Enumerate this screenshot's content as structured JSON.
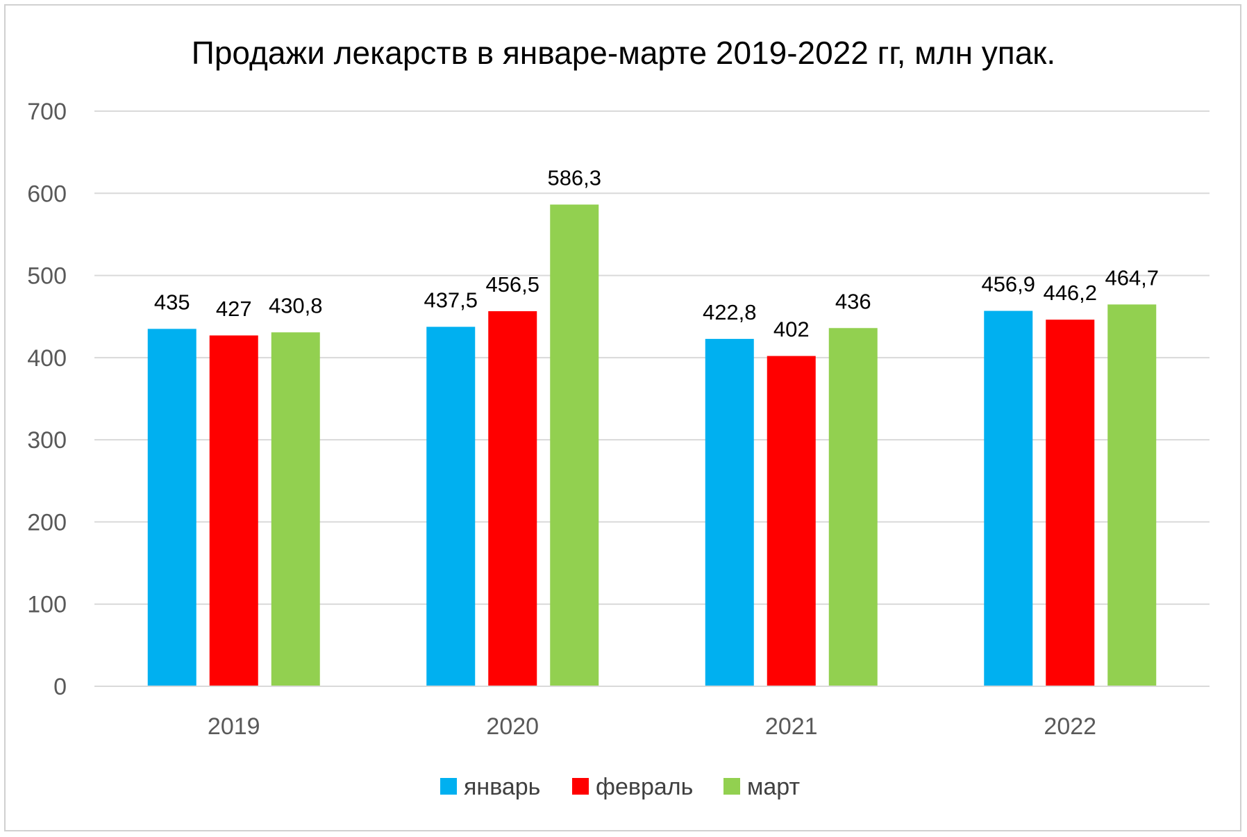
{
  "chart_data": {
    "type": "bar",
    "title": "Продажи лекарств в январе-марте 2019-2022 гг, млн упак.",
    "categories": [
      "2019",
      "2020",
      "2021",
      "2022"
    ],
    "series": [
      {
        "name": "январь",
        "color": "#00b0f0",
        "values": [
          435,
          437.5,
          422.8,
          456.9
        ],
        "labels": [
          "435",
          "437,5",
          "422,8",
          "456,9"
        ]
      },
      {
        "name": "февраль",
        "color": "#ff0000",
        "values": [
          427,
          456.5,
          402,
          446.2
        ],
        "labels": [
          "427",
          "456,5",
          "402",
          "446,2"
        ]
      },
      {
        "name": "март",
        "color": "#92d050",
        "values": [
          430.8,
          586.3,
          436,
          464.7
        ],
        "labels": [
          "430,8",
          "586,3",
          "436",
          "464,7"
        ]
      }
    ],
    "ylim": [
      0,
      700
    ],
    "yticks": [
      0,
      100,
      200,
      300,
      400,
      500,
      600,
      700
    ],
    "grid": true,
    "legend": "bottom"
  }
}
